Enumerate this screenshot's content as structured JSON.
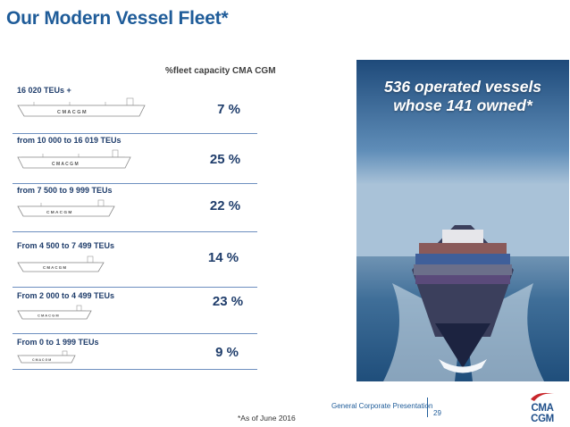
{
  "title": "Our Modern Vessel Fleet*",
  "table_header": "%fleet capacity CMA CGM",
  "ship_marking": "C M A   C G M",
  "rows": [
    {
      "label": "16 020 TEUs +",
      "percent": "7 %"
    },
    {
      "label": "from 10 000 to 16 019 TEUs",
      "percent": "25 %"
    },
    {
      "label": "from 7 500 to 9 999 TEUs",
      "percent": "22 %"
    },
    {
      "label": "From 4 500 to 7 499 TEUs",
      "percent": "14 %"
    },
    {
      "label": "From 2 000 to 4 499 TEUs",
      "percent": "23 %"
    },
    {
      "label": "From 0 to 1 999 TEUs",
      "percent": "9 %"
    }
  ],
  "photo": {
    "line1": "536 operated vessels",
    "line2": "whose 141 owned*"
  },
  "footnote": "*As of  June 2016",
  "footer": {
    "text": "General Corporate Presentation",
    "page": "29"
  },
  "logo": {
    "text": "CMA CGM"
  },
  "colors": {
    "title_blue": "#1f5c99",
    "navy": "#1f3d6b",
    "sea": "#2c5e8f"
  }
}
